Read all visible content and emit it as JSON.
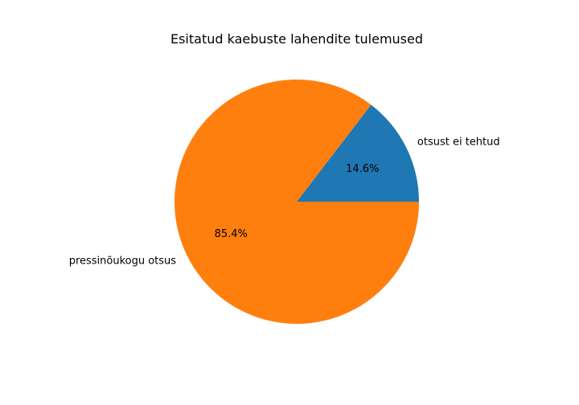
{
  "chart_data": {
    "type": "pie",
    "title": "Esitatud kaebuste lahendite tulemused",
    "slices": [
      {
        "label": "otsust ei tehtud",
        "value": 14.6,
        "pct_label": "14.6%",
        "color": "#1f77b4"
      },
      {
        "label": "pressinõukogu otsus",
        "value": 85.4,
        "pct_label": "85.4%",
        "color": "#ff7f0e"
      }
    ],
    "start_angle_deg": 0,
    "direction": "counterclockwise",
    "legend": "none"
  }
}
